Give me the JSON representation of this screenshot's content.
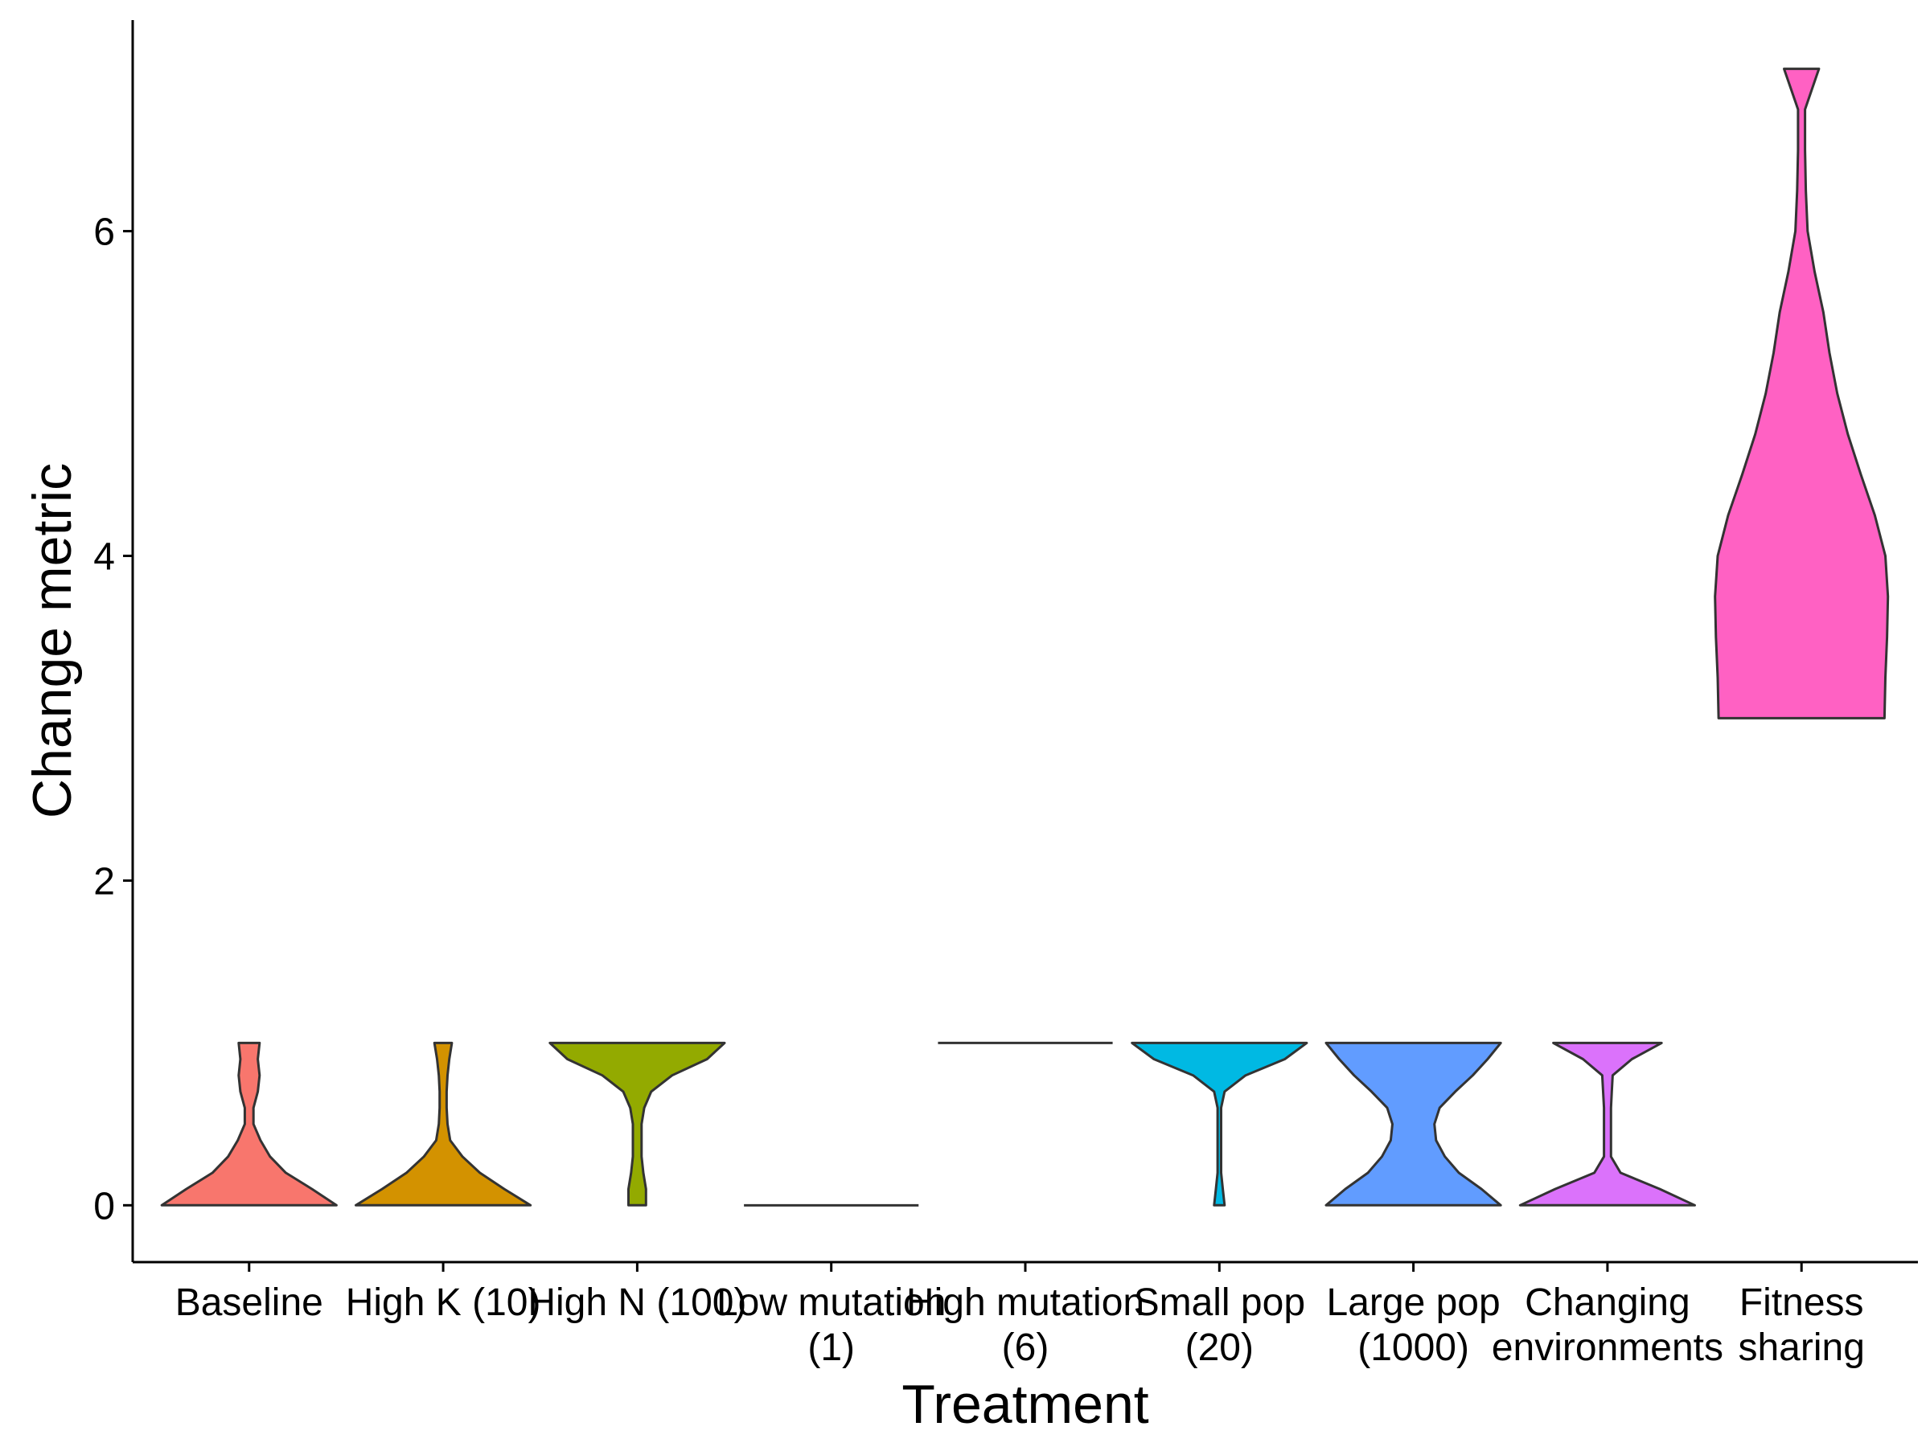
{
  "chart_data": {
    "type": "violin",
    "xlabel": "Treatment",
    "ylabel": "Change metric",
    "ylim": [
      -0.35,
      7.3
    ],
    "yticks": [
      0,
      2,
      4,
      6
    ],
    "grid": false,
    "legend": "none",
    "categories": [
      {
        "label": [
          "Baseline"
        ],
        "color": "#F8766D",
        "min": 0,
        "max": 1,
        "profile": [
          [
            0,
            1.0
          ],
          [
            0.1,
            0.72
          ],
          [
            0.2,
            0.42
          ],
          [
            0.3,
            0.24
          ],
          [
            0.4,
            0.13
          ],
          [
            0.5,
            0.05
          ],
          [
            0.6,
            0.05
          ],
          [
            0.7,
            0.1
          ],
          [
            0.8,
            0.12
          ],
          [
            0.9,
            0.1
          ],
          [
            1,
            0.12
          ]
        ]
      },
      {
        "label": [
          "High K (10)"
        ],
        "color": "#D39200",
        "min": 0,
        "max": 1,
        "profile": [
          [
            0,
            1.0
          ],
          [
            0.1,
            0.7
          ],
          [
            0.2,
            0.42
          ],
          [
            0.3,
            0.22
          ],
          [
            0.4,
            0.08
          ],
          [
            0.5,
            0.05
          ],
          [
            0.6,
            0.04
          ],
          [
            0.7,
            0.04
          ],
          [
            0.8,
            0.05
          ],
          [
            0.9,
            0.07
          ],
          [
            1,
            0.1
          ]
        ]
      },
      {
        "label": [
          "High N (100)"
        ],
        "color": "#93AA00",
        "min": 0,
        "max": 1,
        "profile": [
          [
            0,
            0.1
          ],
          [
            0.1,
            0.1
          ],
          [
            0.2,
            0.07
          ],
          [
            0.3,
            0.05
          ],
          [
            0.4,
            0.05
          ],
          [
            0.5,
            0.05
          ],
          [
            0.6,
            0.08
          ],
          [
            0.7,
            0.16
          ],
          [
            0.8,
            0.4
          ],
          [
            0.9,
            0.8
          ],
          [
            1,
            1.0
          ]
        ]
      },
      {
        "label": [
          "Low mutation",
          "(1)"
        ],
        "color": "#00BA38",
        "min": 0,
        "max": 0,
        "profile": [
          [
            0,
            1.0
          ],
          [
            1,
            1.0
          ]
        ]
      },
      {
        "label": [
          "High mutation",
          "(6)"
        ],
        "color": "#00C19F",
        "min": 1,
        "max": 1,
        "profile": [
          [
            0,
            1.0
          ],
          [
            1,
            1.0
          ]
        ]
      },
      {
        "label": [
          "Small pop",
          "(20)"
        ],
        "color": "#00B9E3",
        "min": 0,
        "max": 1,
        "profile": [
          [
            0,
            0.06
          ],
          [
            0.1,
            0.04
          ],
          [
            0.2,
            0.02
          ],
          [
            0.3,
            0.02
          ],
          [
            0.4,
            0.02
          ],
          [
            0.5,
            0.02
          ],
          [
            0.6,
            0.02
          ],
          [
            0.7,
            0.06
          ],
          [
            0.8,
            0.3
          ],
          [
            0.9,
            0.75
          ],
          [
            1,
            1.0
          ]
        ]
      },
      {
        "label": [
          "Large pop",
          "(1000)"
        ],
        "color": "#619CFF",
        "min": 0,
        "max": 1,
        "profile": [
          [
            0,
            1.0
          ],
          [
            0.1,
            0.78
          ],
          [
            0.2,
            0.52
          ],
          [
            0.3,
            0.36
          ],
          [
            0.4,
            0.26
          ],
          [
            0.5,
            0.24
          ],
          [
            0.6,
            0.3
          ],
          [
            0.7,
            0.48
          ],
          [
            0.8,
            0.68
          ],
          [
            0.9,
            0.85
          ],
          [
            1,
            1.0
          ]
        ]
      },
      {
        "label": [
          "Changing",
          "environments"
        ],
        "color": "#DB72FB",
        "min": 0,
        "max": 1,
        "profile": [
          [
            0,
            1.0
          ],
          [
            0.1,
            0.6
          ],
          [
            0.2,
            0.15
          ],
          [
            0.3,
            0.04
          ],
          [
            0.4,
            0.04
          ],
          [
            0.5,
            0.04
          ],
          [
            0.6,
            0.04
          ],
          [
            0.7,
            0.05
          ],
          [
            0.8,
            0.06
          ],
          [
            0.9,
            0.28
          ],
          [
            1,
            0.62
          ]
        ]
      },
      {
        "label": [
          "Fitness",
          "sharing"
        ],
        "color": "#FF61C3",
        "min": 3,
        "max": 7,
        "profile": [
          [
            3,
            0.95
          ],
          [
            3.25,
            0.96
          ],
          [
            3.5,
            0.98
          ],
          [
            3.75,
            0.99
          ],
          [
            4,
            0.96
          ],
          [
            4.25,
            0.84
          ],
          [
            4.5,
            0.68
          ],
          [
            4.75,
            0.53
          ],
          [
            5,
            0.41
          ],
          [
            5.25,
            0.32
          ],
          [
            5.5,
            0.25
          ],
          [
            5.75,
            0.15
          ],
          [
            6,
            0.07
          ],
          [
            6.25,
            0.05
          ],
          [
            6.5,
            0.04
          ],
          [
            6.75,
            0.04
          ],
          [
            7,
            0.2
          ]
        ]
      }
    ]
  }
}
